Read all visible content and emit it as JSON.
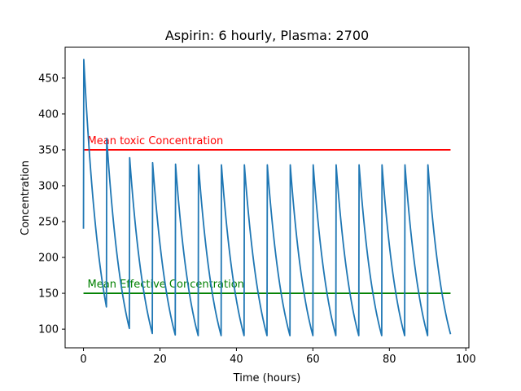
{
  "chart_data": {
    "type": "line",
    "title": "Aspirin: 6 hourly, Plasma: 2700",
    "xlabel": "Time (hours)",
    "ylabel": "Concentration",
    "xlim": [
      -4.8,
      100.8
    ],
    "ylim": [
      74,
      493
    ],
    "xticks": [
      0,
      20,
      40,
      60,
      80,
      100
    ],
    "yticks": [
      100,
      150,
      200,
      250,
      300,
      350,
      400,
      450
    ],
    "grid": false,
    "dose_interval_hours": 6,
    "series": [
      {
        "name": "",
        "color": "#1f77b4",
        "peaks": [
          {
            "t": 0,
            "start": 240,
            "peak": 476,
            "trough": 131
          },
          {
            "t": 6,
            "start": 131,
            "peak": 366,
            "trough": 101
          },
          {
            "t": 12,
            "start": 101,
            "peak": 339,
            "trough": 94
          },
          {
            "t": 18,
            "start": 94,
            "peak": 332,
            "trough": 92
          },
          {
            "t": 24,
            "start": 92,
            "peak": 330,
            "trough": 91
          },
          {
            "t": 30,
            "start": 91,
            "peak": 329,
            "trough": 91
          },
          {
            "t": 36,
            "start": 91,
            "peak": 329,
            "trough": 91
          },
          {
            "t": 42,
            "start": 91,
            "peak": 329,
            "trough": 91
          },
          {
            "t": 48,
            "start": 91,
            "peak": 329,
            "trough": 91
          },
          {
            "t": 54,
            "start": 91,
            "peak": 329,
            "trough": 91
          },
          {
            "t": 60,
            "start": 91,
            "peak": 329,
            "trough": 91
          },
          {
            "t": 66,
            "start": 91,
            "peak": 329,
            "trough": 91
          },
          {
            "t": 72,
            "start": 91,
            "peak": 329,
            "trough": 91
          },
          {
            "t": 78,
            "start": 91,
            "peak": 329,
            "trough": 91
          },
          {
            "t": 84,
            "start": 91,
            "peak": 329,
            "trough": 91
          },
          {
            "t": 90,
            "start": 91,
            "peak": 329,
            "trough": 93
          }
        ],
        "end_time": 96
      }
    ],
    "hlines": [
      {
        "label": "Mean toxic Concentration",
        "y": 350,
        "x_start": 0,
        "x_end": 96,
        "color": "#ff0000"
      },
      {
        "label": "Mean Effective Concentration",
        "y": 150,
        "x_start": 0,
        "x_end": 96,
        "color": "#008000"
      }
    ]
  }
}
